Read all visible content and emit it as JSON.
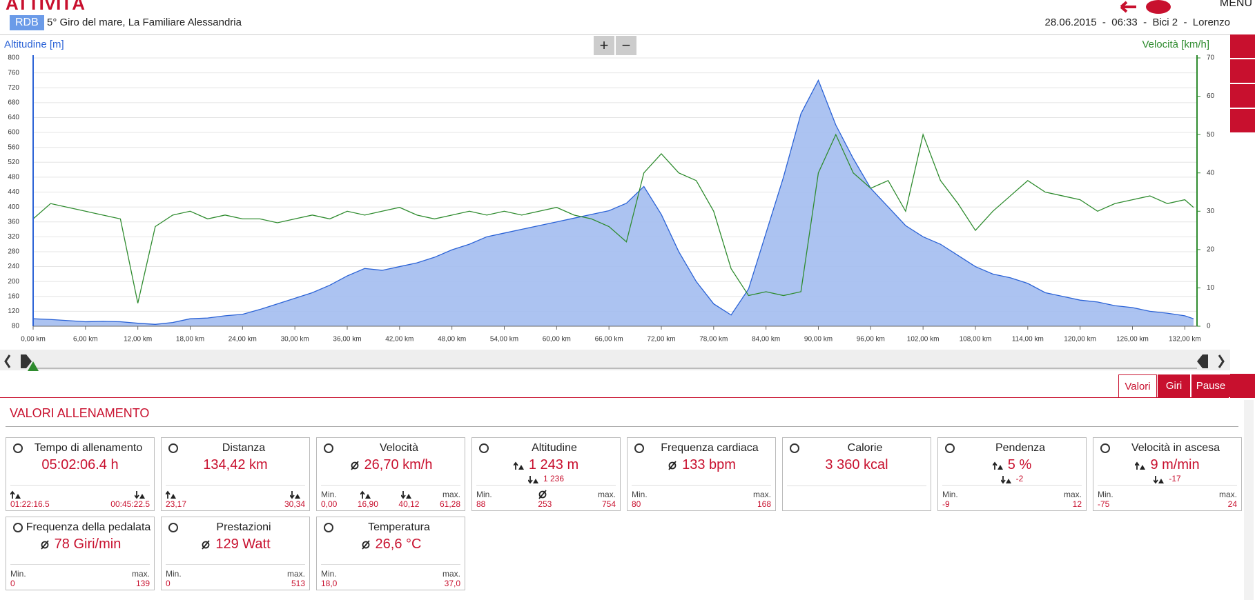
{
  "header": {
    "title": "ATTIVITÀ",
    "badge": "RDB",
    "activity": "5° Giro del mare, La Familiare Alessandria",
    "meta": "28.06.2015  -  06:33  -  Bici 2  -  Lorenzo",
    "menu": "MENU"
  },
  "zoom": {
    "plus": "+",
    "minus": "−"
  },
  "chart_data": {
    "type": "line",
    "x": [
      0,
      2,
      4,
      6,
      8,
      10,
      12,
      14,
      16,
      18,
      20,
      22,
      24,
      26,
      28,
      30,
      32,
      34,
      36,
      38,
      40,
      42,
      44,
      46,
      48,
      50,
      52,
      54,
      56,
      58,
      60,
      62,
      64,
      66,
      68,
      70,
      72,
      74,
      76,
      78,
      80,
      82,
      84,
      86,
      88,
      90,
      92,
      94,
      96,
      98,
      100,
      102,
      104,
      106,
      108,
      110,
      112,
      114,
      116,
      118,
      120,
      122,
      124,
      126,
      128,
      130,
      132,
      133
    ],
    "series": [
      {
        "name": "Altitudine [m]",
        "color": "#2a62d6",
        "fill": "#a3bdf0",
        "kind": "area",
        "values": [
          100,
          98,
          95,
          92,
          93,
          92,
          88,
          85,
          90,
          100,
          102,
          108,
          112,
          125,
          140,
          155,
          170,
          190,
          215,
          235,
          230,
          240,
          250,
          265,
          285,
          300,
          320,
          330,
          340,
          350,
          360,
          370,
          380,
          390,
          410,
          455,
          380,
          280,
          200,
          140,
          110,
          180,
          330,
          480,
          650,
          740,
          620,
          530,
          450,
          400,
          350,
          320,
          300,
          270,
          240,
          220,
          210,
          195,
          170,
          160,
          150,
          145,
          135,
          130,
          120,
          115,
          108,
          100
        ]
      },
      {
        "name": "Velocità [km/h]",
        "color": "#2e8b2e",
        "kind": "line",
        "axis": "y2",
        "values": [
          28,
          32,
          31,
          30,
          29,
          28,
          6,
          26,
          29,
          30,
          28,
          29,
          28,
          28,
          27,
          28,
          29,
          28,
          30,
          29,
          30,
          31,
          29,
          28,
          29,
          30,
          29,
          30,
          29,
          30,
          31,
          29,
          28,
          26,
          22,
          40,
          45,
          40,
          38,
          30,
          15,
          8,
          9,
          8,
          9,
          40,
          50,
          40,
          36,
          38,
          30,
          50,
          38,
          32,
          25,
          30,
          34,
          38,
          35,
          34,
          33,
          30,
          32,
          33,
          34,
          32,
          33,
          31
        ]
      }
    ],
    "xlim": [
      0,
      133.4
    ],
    "ylim": [
      80,
      800
    ],
    "y2lim": [
      0,
      70
    ],
    "yticks": [
      80,
      120,
      160,
      200,
      240,
      280,
      320,
      360,
      400,
      440,
      480,
      520,
      560,
      600,
      640,
      680,
      720,
      760,
      800
    ],
    "y2ticks": [
      0,
      10,
      20,
      30,
      40,
      50,
      60,
      70
    ],
    "xticks": [
      {
        "value": 0,
        "label": "0,00 km"
      },
      {
        "value": 6,
        "label": "6,00 km"
      },
      {
        "value": 12,
        "label": "12,00 km"
      },
      {
        "value": 18,
        "label": "18,00 km"
      },
      {
        "value": 24,
        "label": "24,00 km"
      },
      {
        "value": 30,
        "label": "30,00 km"
      },
      {
        "value": 36,
        "label": "36,00 km"
      },
      {
        "value": 42,
        "label": "42,00 km"
      },
      {
        "value": 48,
        "label": "48,00 km"
      },
      {
        "value": 54,
        "label": "54,00 km"
      },
      {
        "value": 60,
        "label": "60,00 km"
      },
      {
        "value": 66,
        "label": "66,00 km"
      },
      {
        "value": 72,
        "label": "72,00 km"
      },
      {
        "value": 78,
        "label": "78,00 km"
      },
      {
        "value": 84,
        "label": "84,00 km"
      },
      {
        "value": 90,
        "label": "90,00 km"
      },
      {
        "value": 96,
        "label": "96,00 km"
      },
      {
        "value": 102,
        "label": "102,00 km"
      },
      {
        "value": 108,
        "label": "108,00 km"
      },
      {
        "value": 114,
        "label": "114,00 km"
      },
      {
        "value": 120,
        "label": "120,00 km"
      },
      {
        "value": 126,
        "label": "126,00 km"
      },
      {
        "value": 132,
        "label": "132,00 km"
      }
    ],
    "grid": true
  },
  "tabs": [
    "Valori",
    "Giri",
    "Pause"
  ],
  "section_title": "VALORI ALLENAMENTO",
  "cards": [
    {
      "title": "Tempo di allenamento",
      "main": "05:02:06.4 h",
      "footer": [
        {
          "value": "01:22:16.5"
        },
        {
          "value": "00:45:22.5"
        }
      ]
    },
    {
      "title": "Distanza",
      "main": "134,42 km",
      "footer": [
        {
          "value": "23,17"
        },
        {
          "value": "30,34"
        }
      ]
    },
    {
      "title": "Velocità",
      "main_icon": "avg",
      "main": "26,70 km/h",
      "footer": [
        {
          "label": "Min.",
          "value": "0,00"
        },
        {
          "value": "16,90"
        },
        {
          "value": "40,12"
        },
        {
          "label": "max.",
          "value": "61,28"
        }
      ]
    },
    {
      "title": "Altitudine",
      "main_icon": "up",
      "main": "1 243 m",
      "secondary": "1 236",
      "footer": [
        {
          "label": "Min.",
          "value": "88"
        },
        {
          "value": "253"
        },
        {
          "label": "max.",
          "value": "754"
        }
      ]
    },
    {
      "title": "Frequenza cardiaca",
      "main_icon": "avg",
      "main": "133 bpm",
      "footer": [
        {
          "label": "Min.",
          "value": "80"
        },
        {
          "label": "max.",
          "value": "168"
        }
      ]
    },
    {
      "title": "Calorie",
      "main": "3 360 kcal"
    },
    {
      "title": "Pendenza",
      "main_icon": "up",
      "main": "5 %",
      "secondary": "-2",
      "footer": [
        {
          "label": "Min.",
          "value": "-9"
        },
        {
          "label": "max.",
          "value": "12"
        }
      ]
    },
    {
      "title": "Velocità in ascesa",
      "main_icon": "up",
      "main": "9 m/min",
      "secondary": "-17",
      "footer": [
        {
          "label": "Min.",
          "value": "-75"
        },
        {
          "label": "max.",
          "value": "24"
        }
      ]
    },
    {
      "title": "Frequenza della pedalata",
      "main_icon": "avg",
      "main": "78 Giri/min",
      "footer": [
        {
          "label": "Min.",
          "value": "0"
        },
        {
          "label": "max.",
          "value": "139"
        }
      ]
    },
    {
      "title": "Prestazioni",
      "main_icon": "avg",
      "main": "129 Watt",
      "footer": [
        {
          "label": "Min.",
          "value": "0"
        },
        {
          "label": "max.",
          "value": "513"
        }
      ]
    },
    {
      "title": "Temperatura",
      "main_icon": "avg",
      "main": "26,6 °C",
      "footer": [
        {
          "label": "Min.",
          "value": "18,0"
        },
        {
          "label": "max.",
          "value": "37,0"
        }
      ]
    }
  ]
}
